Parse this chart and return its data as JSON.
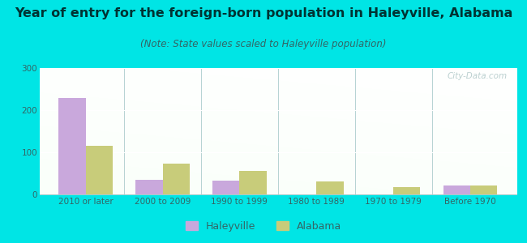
{
  "title": "Year of entry for the foreign-born population in Haleyville, Alabama",
  "subtitle": "(Note: State values scaled to Haleyville population)",
  "categories": [
    "2010 or later",
    "2000 to 2009",
    "1990 to 1999",
    "1980 to 1989",
    "1970 to 1979",
    "Before 1970"
  ],
  "haleyville_values": [
    228,
    35,
    33,
    0,
    0,
    22
  ],
  "alabama_values": [
    116,
    73,
    55,
    30,
    17,
    22
  ],
  "haleyville_color": "#c9a8dc",
  "alabama_color": "#c8cc7a",
  "background_color": "#00e5e5",
  "ylim": [
    0,
    300
  ],
  "yticks": [
    0,
    100,
    200,
    300
  ],
  "bar_width": 0.35,
  "title_fontsize": 11.5,
  "subtitle_fontsize": 8.5,
  "tick_fontsize": 7.5,
  "legend_fontsize": 9,
  "title_color": "#003333",
  "subtitle_color": "#336666",
  "tick_color": "#336666",
  "watermark_text": "City-Data.com",
  "watermark_color": "#b0c8c8"
}
